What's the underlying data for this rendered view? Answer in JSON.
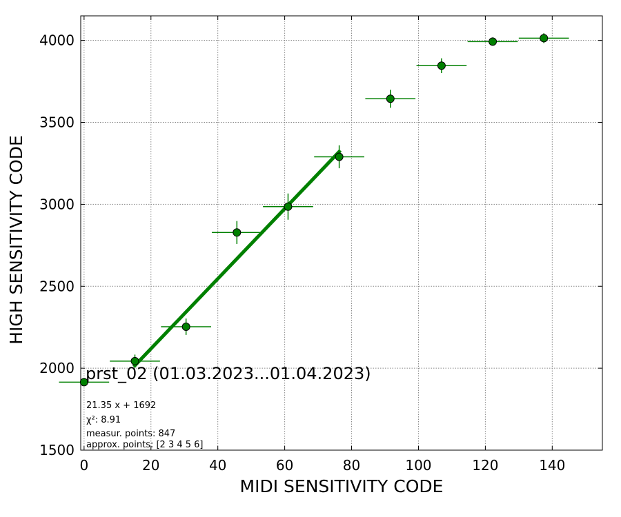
{
  "chart_data": {
    "type": "scatter",
    "title": "prst_02 (01.03.2023...01.04.2023)",
    "xlabel": "MIDI SENSITIVITY CODE",
    "ylabel": "HIGH SENSITIVITY CODE",
    "xlim": [
      -1,
      155
    ],
    "ylim": [
      1500,
      4150
    ],
    "xticks": [
      "0",
      "20",
      "40",
      "60",
      "80",
      "100",
      "120",
      "140"
    ],
    "yticks": [
      "1500",
      "2000",
      "2500",
      "3000",
      "3500",
      "4000"
    ],
    "grid": true,
    "marker_color": "#008000",
    "line_color": "#008000",
    "points": [
      {
        "x": 0,
        "y": 1915,
        "xerr": 7.5,
        "yerr": 25
      },
      {
        "x": 15.2,
        "y": 2043,
        "xerr": 7.5,
        "yerr": 40
      },
      {
        "x": 30.5,
        "y": 2253,
        "xerr": 7.5,
        "yerr": 50
      },
      {
        "x": 45.7,
        "y": 2828,
        "xerr": 7.5,
        "yerr": 70
      },
      {
        "x": 61,
        "y": 2986,
        "xerr": 7.5,
        "yerr": 80
      },
      {
        "x": 76.3,
        "y": 3290,
        "xerr": 7.5,
        "yerr": 70
      },
      {
        "x": 91.6,
        "y": 3644,
        "xerr": 7.5,
        "yerr": 55
      },
      {
        "x": 106.9,
        "y": 3846,
        "xerr": 7.5,
        "yerr": 45
      },
      {
        "x": 122.2,
        "y": 3993,
        "xerr": 7.5,
        "yerr": 25
      },
      {
        "x": 137.5,
        "y": 4014,
        "xerr": 7.5,
        "yerr": 30
      }
    ],
    "fit": {
      "slope": 21.35,
      "intercept": 1692,
      "x_range": [
        15.2,
        76.3
      ]
    },
    "annotations": [
      "21.35 x + 1692",
      "χ²: 8.91",
      "measur. points: 847",
      "approx. points: [2 3 4 5 6]"
    ]
  }
}
